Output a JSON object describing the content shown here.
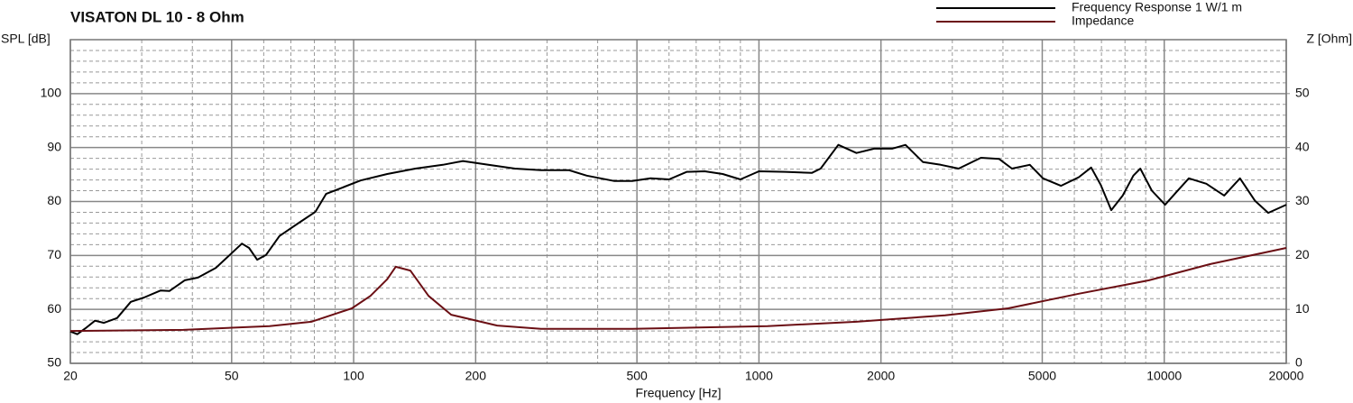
{
  "chart_data": {
    "type": "line",
    "title": "VISATON DL 10 - 8 Ohm",
    "x_label": "Frequency [Hz]",
    "y_label": "SPL [dB]",
    "y2_label": "Z [Ohm]",
    "xscale": "log",
    "xlim": [
      20,
      20000
    ],
    "xticks": [
      20,
      50,
      100,
      200,
      500,
      1000,
      2000,
      5000,
      10000,
      20000
    ],
    "xminor": [
      30,
      40,
      60,
      70,
      80,
      90,
      300,
      400,
      600,
      700,
      800,
      900,
      3000,
      4000,
      6000,
      7000,
      8000,
      9000
    ],
    "ylim": [
      50,
      110
    ],
    "yticks": [
      50,
      60,
      70,
      80,
      90,
      100
    ],
    "yminor": [
      52,
      54,
      56,
      58,
      62,
      64,
      66,
      68,
      72,
      74,
      76,
      78,
      82,
      84,
      86,
      88,
      92,
      94,
      96,
      98,
      102,
      104,
      106,
      108,
      110
    ],
    "y2lim": [
      0,
      60
    ],
    "y2ticks": [
      0,
      10,
      20,
      30,
      40,
      50
    ],
    "grid": true,
    "legend": "top-right",
    "series": [
      {
        "name": "Frequency Response 1 W/1 m",
        "color": "#000000",
        "x": [
          20,
          20.8,
          21.8,
          23,
          24.2,
          26.1,
          28.2,
          30.4,
          33.4,
          35.1,
          38.3,
          41.3,
          45.7,
          49.5,
          53,
          55.2,
          57.8,
          60.8,
          65.6,
          72.8,
          80.5,
          85.5,
          94,
          104,
          121,
          142,
          166,
          186,
          215,
          250,
          290,
          340,
          376,
          440,
          487,
          540,
          600,
          664,
          735,
          814,
          900,
          1000,
          1160,
          1350,
          1420,
          1570,
          1740,
          1925,
          2130,
          2300,
          2540,
          2810,
          3110,
          3530,
          3910,
          4210,
          4660,
          5020,
          5560,
          6150,
          6600,
          6970,
          7400,
          7900,
          8390,
          8730,
          9320,
          10050,
          10670,
          11500,
          12700,
          14060,
          15380,
          16760,
          18050,
          20000
        ],
        "values": [
          55.9,
          55.4,
          56.5,
          57.9,
          57.5,
          58.4,
          61.4,
          62.2,
          63.5,
          63.4,
          65.4,
          65.9,
          67.7,
          70.1,
          72.2,
          71.4,
          69.2,
          70.1,
          73.6,
          75.9,
          78.1,
          81.4,
          82.6,
          83.9,
          85.1,
          86.1,
          86.8,
          87.5,
          86.8,
          86.1,
          85.8,
          85.8,
          84.8,
          83.8,
          83.8,
          84.3,
          84.1,
          85.5,
          85.6,
          85.1,
          84.1,
          85.6,
          85.5,
          85.3,
          86.1,
          90.5,
          89.0,
          89.8,
          89.8,
          90.5,
          87.3,
          86.8,
          86.1,
          88.1,
          87.9,
          86.1,
          86.8,
          84.3,
          82.9,
          84.5,
          86.3,
          83.1,
          78.4,
          81.1,
          84.8,
          86.1,
          82.0,
          79.4,
          81.6,
          84.3,
          83.3,
          81.1,
          84.3,
          80.1,
          77.9,
          79.4
        ]
      },
      {
        "name": "Impedance",
        "color": "#6b0f14",
        "axis": "y2",
        "x": [
          20,
          38,
          62,
          78.6,
          99,
          110,
          121,
          127,
          138,
          153,
          174,
          226,
          290,
          487,
          1050,
          1740,
          2880,
          4120,
          6150,
          9170,
          13000,
          20000
        ],
        "values": [
          6.0,
          6.2,
          6.9,
          7.7,
          10.2,
          12.5,
          15.6,
          17.9,
          17.2,
          12.5,
          9.0,
          7.0,
          6.4,
          6.4,
          6.9,
          7.7,
          8.9,
          10.2,
          12.9,
          15.4,
          18.4,
          21.4
        ]
      }
    ]
  }
}
